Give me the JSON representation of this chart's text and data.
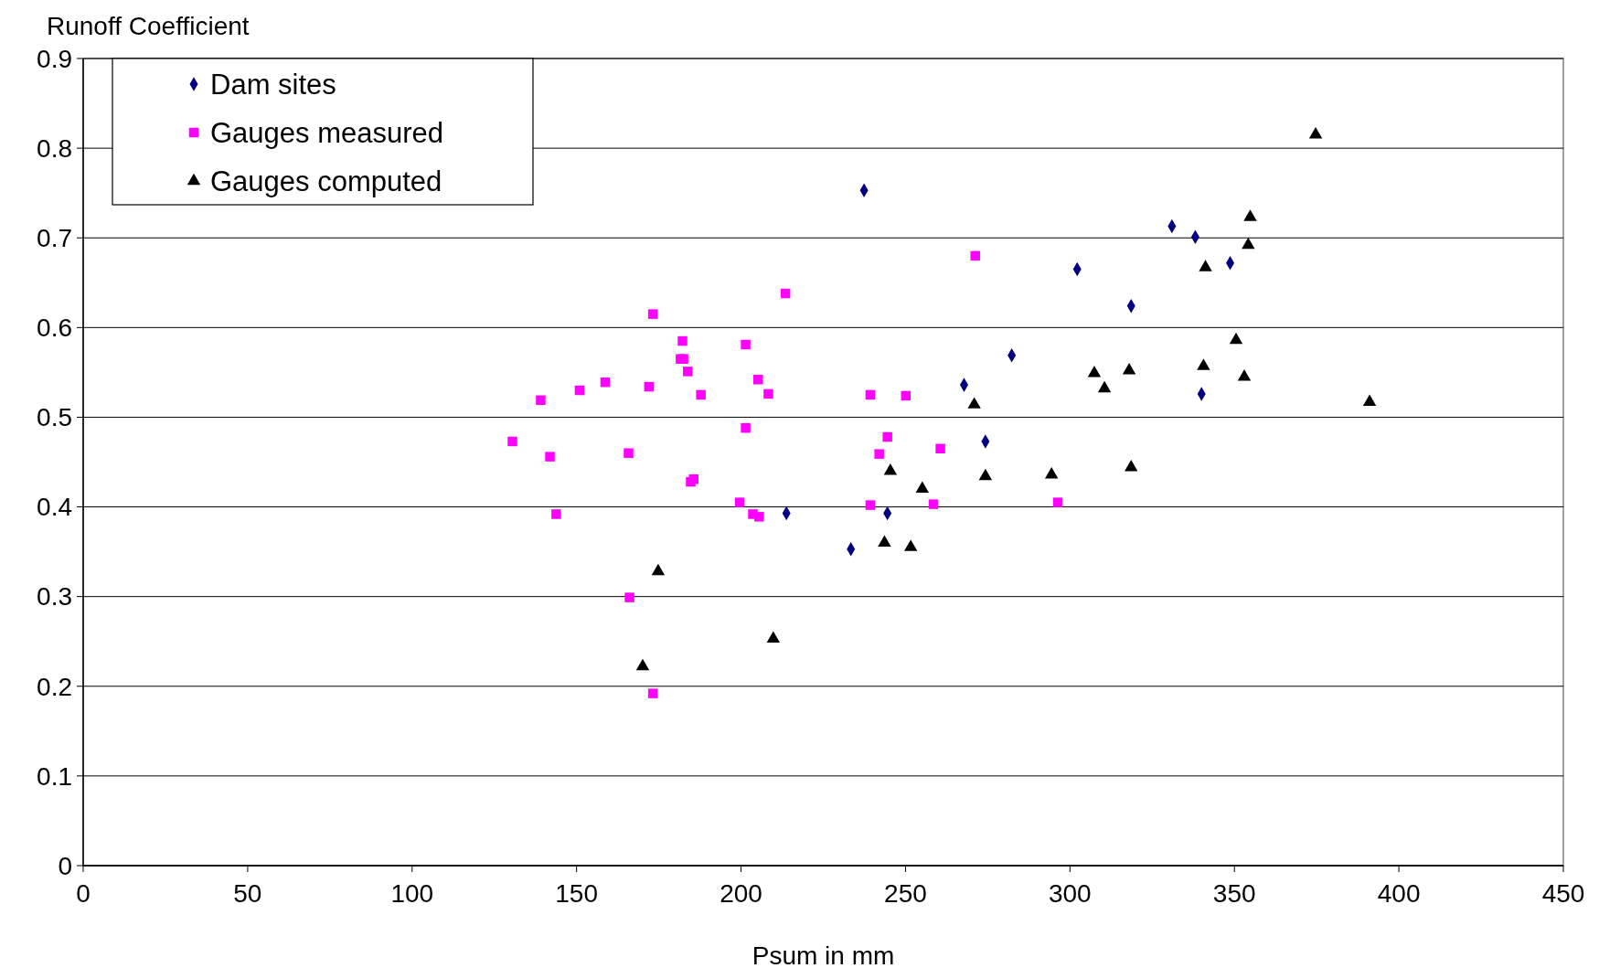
{
  "chart_data": {
    "type": "scatter",
    "xlabel": "Psum in mm",
    "ylabel": "Runoff Coefficient",
    "xlim": [
      0,
      450
    ],
    "xticks": [
      0,
      50,
      100,
      150,
      200,
      250,
      300,
      350,
      400,
      450
    ],
    "ylim": [
      0,
      0.9
    ],
    "yticks": [
      0,
      0.1,
      0.2,
      0.3,
      0.4,
      0.5,
      0.6,
      0.7,
      0.8,
      0.9
    ],
    "grid": "y",
    "legend": "top left",
    "series": [
      {
        "name": "Dam sites",
        "color": "#000080",
        "marker": "diamond",
        "x": [
          237.4,
          302.2,
          318.6,
          331,
          338.1,
          348.7,
          340,
          282.3,
          267.8,
          274.3,
          213.8,
          244.5,
          233.4
        ],
        "values": [
          0.753,
          0.665,
          0.624,
          0.713,
          0.701,
          0.672,
          0.526,
          0.569,
          0.536,
          0.473,
          0.393,
          0.393,
          0.353
        ]
      },
      {
        "name": "Gauges measured",
        "color": "#ff00ff",
        "marker": "square",
        "x": [
          130.5,
          139.1,
          141.9,
          143.8,
          150.9,
          158.7,
          165.8,
          166.1,
          172,
          173.2,
          173.2,
          182.2,
          181.6,
          182.5,
          183.8,
          184.7,
          185.6,
          187.8,
          201.4,
          201.4,
          199.6,
          203.6,
          205.5,
          205.2,
          208.3,
          213.5,
          239.3,
          239.3,
          242,
          244.5,
          250.1,
          258.5,
          260.6,
          271.2,
          296.3
        ],
        "values": [
          0.473,
          0.519,
          0.456,
          0.392,
          0.53,
          0.539,
          0.46,
          0.299,
          0.534,
          0.615,
          0.192,
          0.585,
          0.565,
          0.565,
          0.551,
          0.428,
          0.431,
          0.525,
          0.581,
          0.488,
          0.405,
          0.392,
          0.389,
          0.542,
          0.526,
          0.638,
          0.525,
          0.402,
          0.459,
          0.478,
          0.524,
          0.403,
          0.465,
          0.68,
          0.405
        ]
      },
      {
        "name": "Gauges computed",
        "color": "#000000",
        "marker": "triangle",
        "x": [
          170.1,
          174.8,
          209.8,
          243.6,
          251.6,
          245.4,
          255.1,
          270.9,
          274.3,
          294.4,
          307.4,
          310.5,
          318,
          318.6,
          340.6,
          341.2,
          350.5,
          353,
          354.2,
          354.8,
          374.7,
          391.1
        ],
        "values": [
          0.222,
          0.328,
          0.253,
          0.36,
          0.355,
          0.44,
          0.42,
          0.514,
          0.434,
          0.436,
          0.549,
          0.532,
          0.552,
          0.444,
          0.557,
          0.667,
          0.586,
          0.545,
          0.692,
          0.723,
          0.815,
          0.517
        ]
      }
    ]
  }
}
